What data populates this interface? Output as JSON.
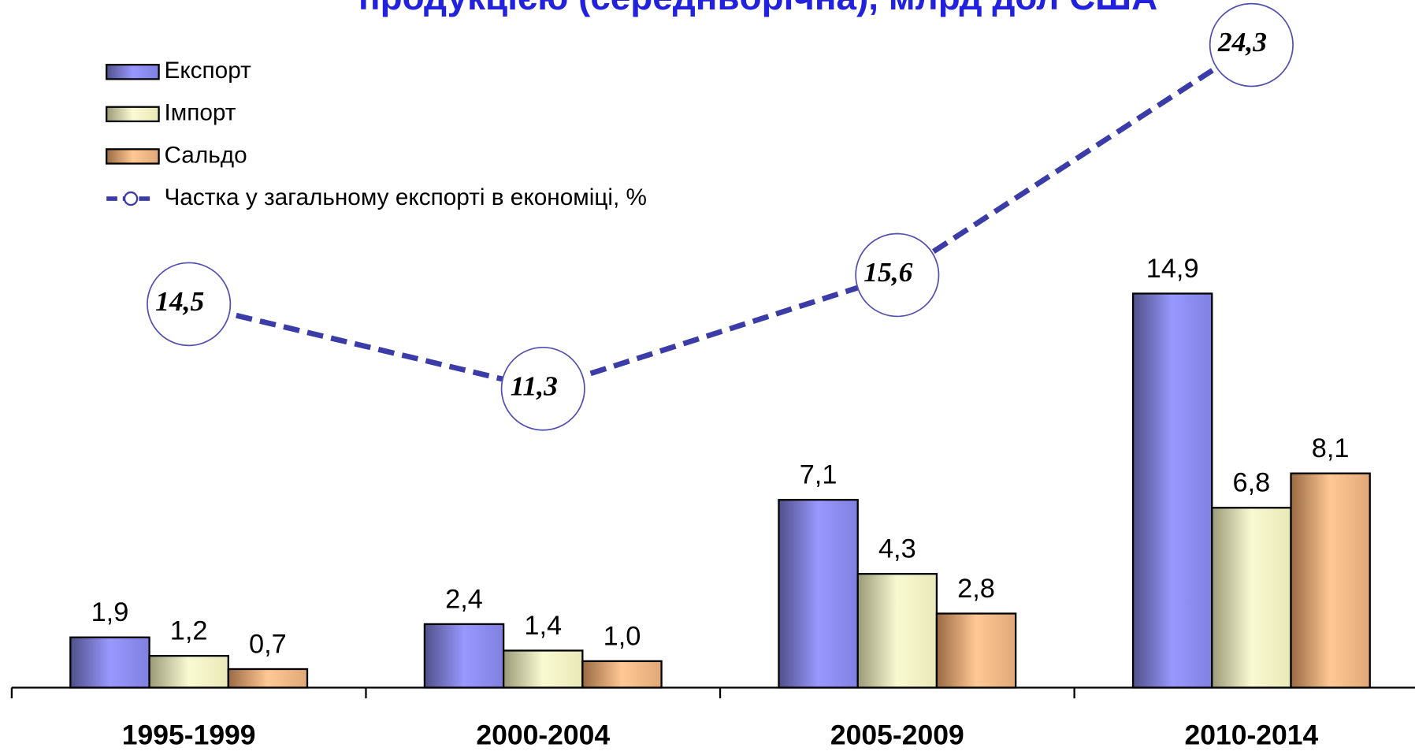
{
  "chart_data": {
    "type": "bar",
    "title": "продукцією (середньорічна), млрд дол США",
    "categories": [
      "1995-1999",
      "2000-2004",
      "2005-2009",
      "2010-2014"
    ],
    "series": [
      {
        "name": "Експорт",
        "color": "#9090f0",
        "values": [
          1.9,
          2.4,
          7.1,
          14.9
        ],
        "value_labels": [
          "1,9",
          "2,4",
          "7,1",
          "14,9"
        ]
      },
      {
        "name": "Імпорт",
        "color": "#f4f4c6",
        "values": [
          1.2,
          1.4,
          4.3,
          6.8
        ],
        "value_labels": [
          "1,2",
          "1,4",
          "4,3",
          "6,8"
        ]
      },
      {
        "name": "Сальдо",
        "color": "#f2b888",
        "values": [
          0.7,
          1.0,
          2.8,
          8.1
        ],
        "value_labels": [
          "0,7",
          "1,0",
          "2,8",
          "8,1"
        ]
      },
      {
        "name": "Частка у загальному експорті в економіці, %",
        "type": "line",
        "axis": "y2",
        "color": "#3c3ca8",
        "values": [
          14.5,
          11.3,
          15.6,
          24.3
        ],
        "value_labels": [
          "14,5",
          "11,3",
          "15,6",
          "24,3"
        ]
      }
    ],
    "ylim": [
      0,
      26
    ],
    "y2lim": [
      0,
      26
    ],
    "legend": "upper left"
  }
}
